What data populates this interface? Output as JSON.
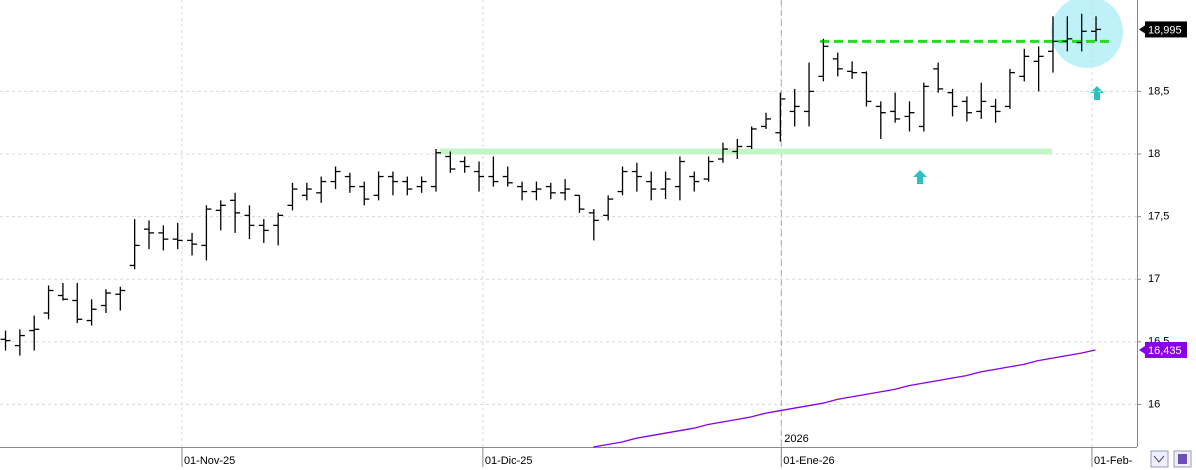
{
  "chart_data": {
    "type": "ohlc",
    "bar_color": "#000000",
    "ohlc": [
      [
        16.52,
        16.59,
        16.43,
        16.51
      ],
      [
        16.47,
        16.6,
        16.39,
        16.55
      ],
      [
        16.59,
        16.71,
        16.43,
        16.6
      ],
      [
        16.73,
        16.95,
        16.68,
        16.91
      ],
      [
        16.87,
        16.97,
        16.83,
        16.84
      ],
      [
        16.83,
        16.97,
        16.65,
        16.68
      ],
      [
        16.67,
        16.84,
        16.63,
        16.76
      ],
      [
        16.79,
        16.92,
        16.73,
        16.89
      ],
      [
        16.88,
        16.94,
        16.75,
        16.91
      ],
      [
        17.11,
        17.48,
        17.08,
        17.27
      ],
      [
        17.4,
        17.47,
        17.24,
        17.37
      ],
      [
        17.37,
        17.43,
        17.23,
        17.32
      ],
      [
        17.32,
        17.45,
        17.24,
        17.31
      ],
      [
        17.31,
        17.37,
        17.19,
        17.28
      ],
      [
        17.27,
        17.59,
        17.15,
        17.56
      ],
      [
        17.55,
        17.63,
        17.39,
        17.59
      ],
      [
        17.63,
        17.69,
        17.37,
        17.53
      ],
      [
        17.51,
        17.59,
        17.32,
        17.43
      ],
      [
        17.43,
        17.48,
        17.29,
        17.39
      ],
      [
        17.43,
        17.53,
        17.27,
        17.51
      ],
      [
        17.59,
        17.77,
        17.55,
        17.72
      ],
      [
        17.67,
        17.77,
        17.63,
        17.72
      ],
      [
        17.69,
        17.82,
        17.61,
        17.78
      ],
      [
        17.78,
        17.9,
        17.72,
        17.86
      ],
      [
        17.82,
        17.85,
        17.69,
        17.74
      ],
      [
        17.74,
        17.78,
        17.59,
        17.64
      ],
      [
        17.67,
        17.86,
        17.63,
        17.82
      ],
      [
        17.82,
        17.86,
        17.67,
        17.78
      ],
      [
        17.78,
        17.82,
        17.67,
        17.72
      ],
      [
        17.74,
        17.82,
        17.69,
        17.78
      ],
      [
        17.74,
        18.04,
        17.7,
        18.01
      ],
      [
        17.98,
        18.02,
        17.85,
        17.88
      ],
      [
        17.94,
        17.98,
        17.85,
        17.9
      ],
      [
        17.86,
        17.94,
        17.7,
        17.82
      ],
      [
        17.82,
        17.98,
        17.74,
        17.78
      ],
      [
        17.82,
        17.9,
        17.74,
        17.77
      ],
      [
        17.74,
        17.78,
        17.63,
        17.7
      ],
      [
        17.7,
        17.78,
        17.63,
        17.72
      ],
      [
        17.74,
        17.77,
        17.64,
        17.69
      ],
      [
        17.69,
        17.8,
        17.63,
        17.72
      ],
      [
        17.67,
        17.67,
        17.53,
        17.56
      ],
      [
        17.53,
        17.56,
        17.31,
        17.47
      ],
      [
        17.51,
        17.67,
        17.47,
        17.64
      ],
      [
        17.7,
        17.9,
        17.67,
        17.86
      ],
      [
        17.86,
        17.93,
        17.7,
        17.82
      ],
      [
        17.78,
        17.86,
        17.63,
        17.72
      ],
      [
        17.72,
        17.86,
        17.64,
        17.8
      ],
      [
        17.74,
        17.98,
        17.63,
        17.94
      ],
      [
        17.82,
        17.86,
        17.7,
        17.78
      ],
      [
        17.8,
        17.98,
        17.78,
        17.94
      ],
      [
        17.96,
        18.09,
        17.93,
        18.04
      ],
      [
        18.02,
        18.12,
        17.96,
        18.06
      ],
      [
        18.06,
        18.22,
        18.04,
        18.2
      ],
      [
        18.22,
        18.33,
        18.2,
        18.28
      ],
      [
        18.17,
        18.49,
        18.1,
        18.44
      ],
      [
        18.34,
        18.52,
        18.22,
        18.38
      ],
      [
        18.34,
        18.73,
        18.22,
        18.5
      ],
      [
        18.62,
        18.92,
        18.58,
        18.86
      ],
      [
        18.76,
        18.81,
        18.62,
        18.68
      ],
      [
        18.66,
        18.74,
        18.6,
        18.65
      ],
      [
        18.65,
        18.66,
        18.38,
        18.42
      ],
      [
        18.38,
        18.42,
        18.12,
        18.33
      ],
      [
        18.34,
        18.49,
        18.25,
        18.28
      ],
      [
        18.3,
        18.42,
        18.18,
        18.33
      ],
      [
        18.22,
        18.57,
        18.18,
        18.54
      ],
      [
        18.68,
        18.73,
        18.49,
        18.52
      ],
      [
        18.49,
        18.52,
        18.3,
        18.38
      ],
      [
        18.42,
        18.46,
        18.26,
        18.33
      ],
      [
        18.34,
        18.57,
        18.28,
        18.42
      ],
      [
        18.38,
        18.44,
        18.25,
        18.34
      ],
      [
        18.38,
        18.68,
        18.36,
        18.65
      ],
      [
        18.62,
        18.84,
        18.58,
        18.78
      ],
      [
        18.74,
        18.86,
        18.5,
        18.78
      ],
      [
        18.82,
        19.1,
        18.65,
        18.9
      ],
      [
        18.9,
        19.1,
        18.82,
        18.92
      ],
      [
        18.89,
        19.12,
        18.82,
        18.98
      ],
      [
        18.98,
        19.1,
        18.9,
        18.995
      ]
    ],
    "ma": {
      "color": "#8a00e6",
      "values": [
        null,
        null,
        null,
        null,
        null,
        null,
        null,
        null,
        null,
        null,
        null,
        null,
        null,
        null,
        null,
        null,
        null,
        null,
        null,
        null,
        null,
        null,
        null,
        null,
        null,
        null,
        null,
        null,
        null,
        null,
        null,
        null,
        null,
        null,
        null,
        null,
        null,
        null,
        null,
        null,
        null,
        15.66,
        15.68,
        15.7,
        15.73,
        15.75,
        15.77,
        15.79,
        15.81,
        15.84,
        15.86,
        15.88,
        15.9,
        15.93,
        15.95,
        15.97,
        15.99,
        16.01,
        16.04,
        16.06,
        16.08,
        16.1,
        16.12,
        16.15,
        16.17,
        16.19,
        16.21,
        16.23,
        16.26,
        16.28,
        16.3,
        16.32,
        16.35,
        16.37,
        16.39,
        16.41,
        16.435
      ]
    },
    "ylim": [
      15.66,
      19.23
    ],
    "yticks": [
      16,
      {
        "value": 16.5,
        "label": "16,5"
      },
      17,
      {
        "value": 17.5,
        "label": "17,5"
      },
      18,
      {
        "value": 18.5,
        "label": "18,5"
      }
    ],
    "xlim": [
      -0.35,
      78.89
    ],
    "xticks": [
      {
        "value": 12.33,
        "label": "01-Nov-25"
      },
      {
        "value": 33.3,
        "label": "01-Dic-25"
      },
      {
        "value": 54.1,
        "label": "01-Ene-26"
      },
      {
        "value": 75.75,
        "label": "01-Feb-"
      }
    ],
    "year_marker": {
      "value": 54.1,
      "label": "2026"
    },
    "grid": true,
    "levels": [
      {
        "value": 18.9,
        "color": "#22dd22",
        "style": "dashed"
      },
      {
        "value": 18.02,
        "color": "#c4f5c4",
        "style": "band"
      }
    ],
    "price_labels": [
      {
        "value": 18.995,
        "label": "18,995",
        "color": "#000000"
      },
      {
        "value": 16.435,
        "label": "16,435",
        "color": "#8a00e6"
      }
    ]
  }
}
